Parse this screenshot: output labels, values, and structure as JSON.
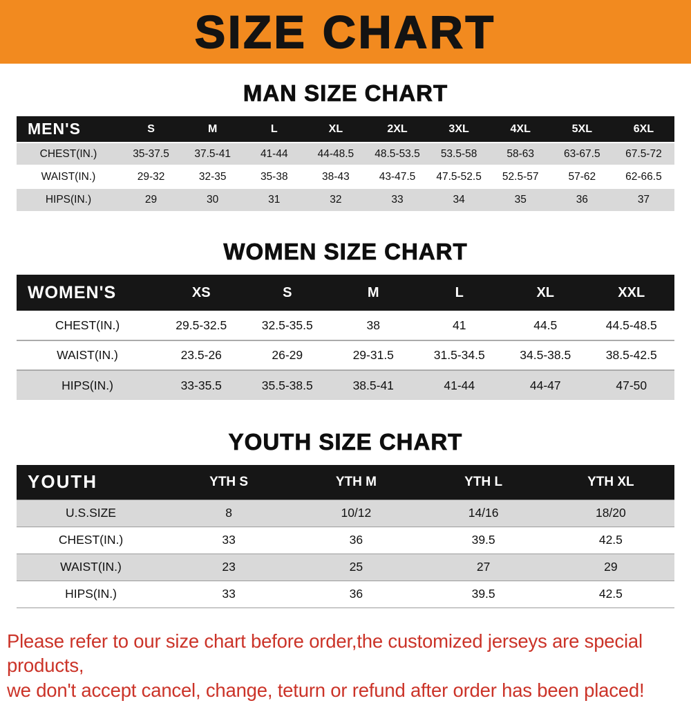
{
  "banner": {
    "title": "SIZE CHART",
    "bg_color": "#f28a1f"
  },
  "sections": [
    {
      "heading": "MAN SIZE CHART",
      "table": {
        "title": "MEN'S",
        "columns": [
          "S",
          "M",
          "L",
          "XL",
          "2XL",
          "3XL",
          "4XL",
          "5XL",
          "6XL"
        ],
        "rows": [
          {
            "label": "CHEST(IN.)",
            "values": [
              "35-37.5",
              "37.5-41",
              "41-44",
              "44-48.5",
              "48.5-53.5",
              "53.5-58",
              "58-63",
              "63-67.5",
              "67.5-72"
            ]
          },
          {
            "label": "WAIST(IN.)",
            "values": [
              "29-32",
              "32-35",
              "35-38",
              "38-43",
              "43-47.5",
              "47.5-52.5",
              "52.5-57",
              "57-62",
              "62-66.5"
            ]
          },
          {
            "label": "HIPS(IN.)",
            "values": [
              "29",
              "30",
              "31",
              "32",
              "33",
              "34",
              "35",
              "36",
              "37"
            ]
          }
        ]
      }
    },
    {
      "heading": "WOMEN SIZE CHART",
      "table": {
        "title": "WOMEN'S",
        "columns": [
          "XS",
          "S",
          "M",
          "L",
          "XL",
          "XXL"
        ],
        "rows": [
          {
            "label": "CHEST(IN.)",
            "values": [
              "29.5-32.5",
              "32.5-35.5",
              "38",
              "41",
              "44.5",
              "44.5-48.5"
            ]
          },
          {
            "label": "WAIST(IN.)",
            "values": [
              "23.5-26",
              "26-29",
              "29-31.5",
              "31.5-34.5",
              "34.5-38.5",
              "38.5-42.5"
            ]
          },
          {
            "label": "HIPS(IN.)",
            "values": [
              "33-35.5",
              "35.5-38.5",
              "38.5-41",
              "41-44",
              "44-47",
              "47-50"
            ]
          }
        ]
      }
    },
    {
      "heading": "YOUTH SIZE CHART",
      "table": {
        "title": "YOUTH",
        "columns": [
          "YTH S",
          "YTH M",
          "YTH L",
          "YTH XL"
        ],
        "rows": [
          {
            "label": "U.S.SIZE",
            "values": [
              "8",
              "10/12",
              "14/16",
              "18/20"
            ]
          },
          {
            "label": "CHEST(IN.)",
            "values": [
              "33",
              "36",
              "39.5",
              "42.5"
            ]
          },
          {
            "label": "WAIST(IN.)",
            "values": [
              "23",
              "25",
              "27",
              "29"
            ]
          },
          {
            "label": "HIPS(IN.)",
            "values": [
              "33",
              "36",
              "39.5",
              "42.5"
            ]
          }
        ]
      }
    }
  ],
  "footer": {
    "line1": "Please refer to our size chart before order,the customized jerseys are special products,",
    "line2": "we don't accept cancel, change, teturn or refund after order has been placed!",
    "text_color": "#cb3328"
  }
}
